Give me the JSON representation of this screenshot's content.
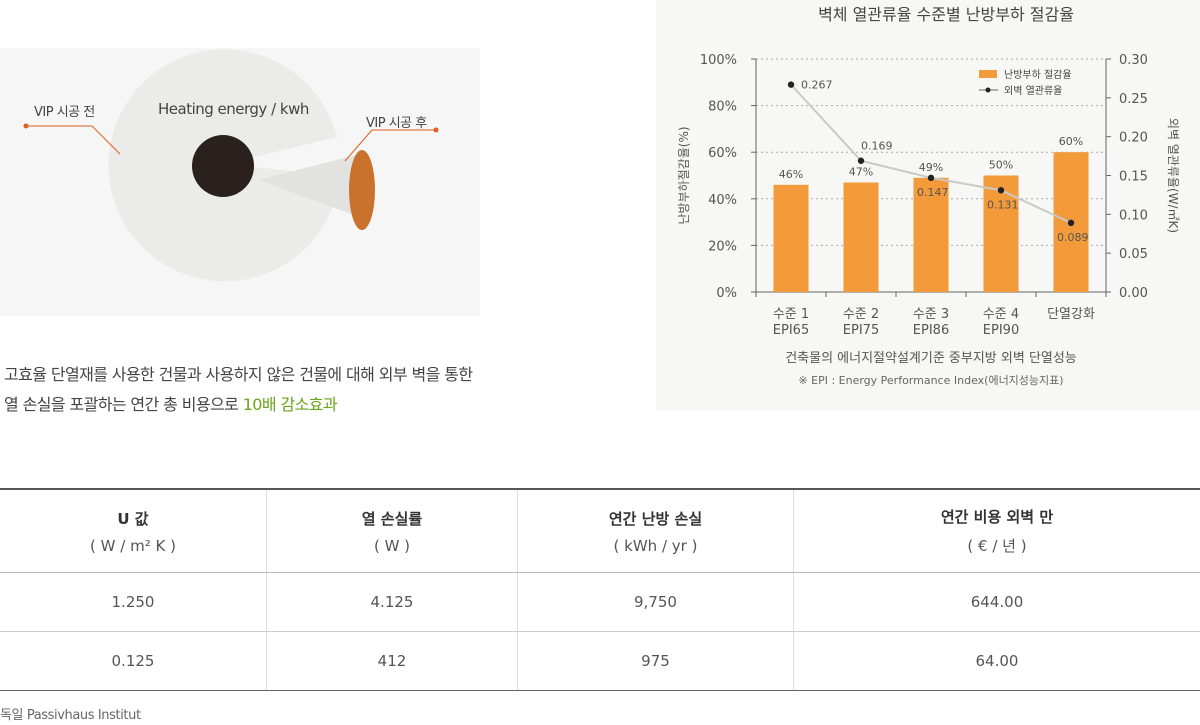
{
  "illustration": {
    "before_label": "VIP 시공 전",
    "center_label": "Heating energy / kwh",
    "after_label": "VIP 시공 후"
  },
  "description": {
    "line1": "고효율 단열재를 사용한 건물과 사용하지 않은 건물에 대해 외부 벽을 통한",
    "line2_prefix": "열 손실을 포괄하는 연간 총 비용으로 ",
    "line2_highlight": "10배 감소효과",
    "highlight_color": "#6aa51c"
  },
  "chart_data": {
    "type": "bar",
    "title": "벽체 열관류율 수준별 난방부하 절감율",
    "categories": [
      [
        "수준 1",
        "EPI65"
      ],
      [
        "수준 2",
        "EPI75"
      ],
      [
        "수준 3",
        "EPI86"
      ],
      [
        "수준 4",
        "EPI90"
      ],
      [
        "단열강화"
      ]
    ],
    "series": [
      {
        "name": "난방부하 절감율",
        "axis": "left",
        "kind": "bar",
        "color": "#f39a3a",
        "values": [
          46,
          47,
          49,
          50,
          60
        ],
        "labels": [
          "46%",
          "47%",
          "49%",
          "50%",
          "60%"
        ]
      },
      {
        "name": "외벽 열관류율",
        "axis": "right",
        "kind": "line",
        "color": "#c9c9c9",
        "values": [
          0.267,
          0.169,
          0.147,
          0.131,
          0.089
        ],
        "labels": [
          "0.267",
          "0.169",
          "0.147",
          "0.131",
          "0.089"
        ]
      }
    ],
    "ylabel": "난방부하절감율(%)",
    "ylabel_right": "외벽 열관류율(W/㎡K)",
    "ylim": [
      0,
      100
    ],
    "ylim_right": [
      0,
      0.3
    ],
    "yticks": [
      "0%",
      "20%",
      "40%",
      "60%",
      "80%",
      "100%"
    ],
    "yticks_right": [
      "0.00",
      "0.05",
      "0.10",
      "0.15",
      "0.20",
      "0.25",
      "0.30"
    ],
    "xlabel": "건축물의 에너지절약설계기준 중부지방 외벽 단열성능",
    "note": "※ EPI : Energy Performance Index(에너지성능지표)",
    "legend": "top-right",
    "grid": true
  },
  "table": {
    "headers": [
      {
        "title": "U 값",
        "unit": "( W / m² K )"
      },
      {
        "title": "열 손실률",
        "unit": "( W )"
      },
      {
        "title": "연간 난방 손실",
        "unit": "( kWh / yr )"
      },
      {
        "title": "연간 비용 외벽 만",
        "unit": "( € / 년 )"
      }
    ],
    "rows": [
      [
        "1.250",
        "4.125",
        "9,750",
        "644.00"
      ],
      [
        "0.125",
        "412",
        "975",
        "64.00"
      ]
    ]
  },
  "source": "독일 Passivhaus Institut"
}
